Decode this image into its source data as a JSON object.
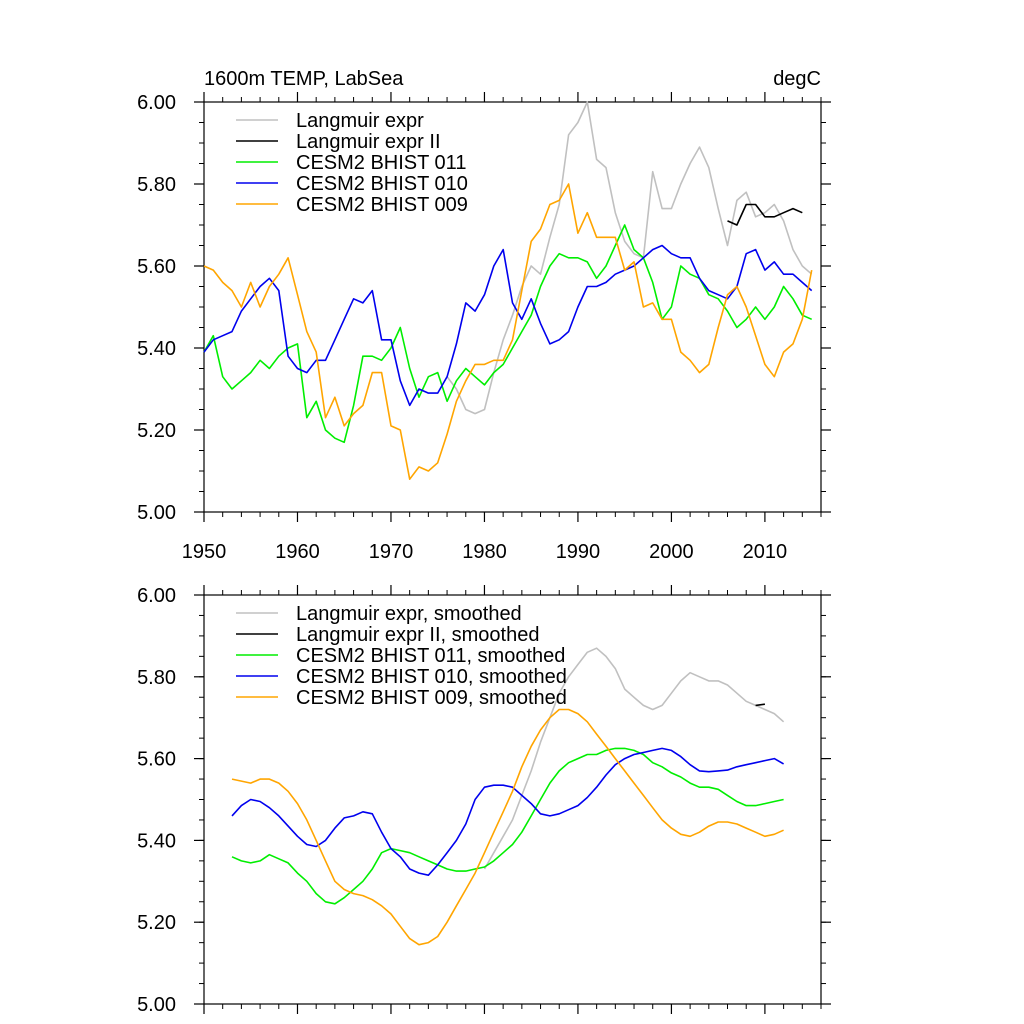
{
  "header": {
    "left": "1600m TEMP, LabSea",
    "right": "degC"
  },
  "chart_data": [
    {
      "type": "line",
      "title": "1600m TEMP, LabSea",
      "units": "degC",
      "xlim": [
        1950,
        2016
      ],
      "ylim": [
        5.0,
        6.0
      ],
      "x_ticks": [
        1950,
        1960,
        1970,
        1980,
        1990,
        2000,
        2010
      ],
      "y_ticks": [
        5.0,
        5.2,
        5.4,
        5.6,
        5.8,
        6.0
      ],
      "y_tick_labels": [
        "5.00",
        "5.20",
        "5.40",
        "5.60",
        "5.80",
        "6.00"
      ],
      "grid": false,
      "legend_position": "top-left",
      "series": [
        {
          "name": "Langmuir expr",
          "color": "#c0c0c0",
          "x": [
            1976,
            1977,
            1978,
            1979,
            1980,
            1981,
            1982,
            1983,
            1984,
            1985,
            1986,
            1987,
            1988,
            1989,
            1990,
            1991,
            1992,
            1993,
            1994,
            1995,
            1996,
            1997,
            1998,
            1999,
            2000,
            2001,
            2002,
            2003,
            2004,
            2005,
            2006,
            2007,
            2008,
            2009,
            2010,
            2011,
            2012,
            2013,
            2014,
            2015
          ],
          "y": [
            5.33,
            5.3,
            5.25,
            5.24,
            5.25,
            5.34,
            5.42,
            5.48,
            5.55,
            5.6,
            5.58,
            5.67,
            5.75,
            5.92,
            5.95,
            6.0,
            5.86,
            5.84,
            5.73,
            5.66,
            5.63,
            5.62,
            5.83,
            5.74,
            5.74,
            5.8,
            5.85,
            5.89,
            5.84,
            5.74,
            5.65,
            5.76,
            5.78,
            5.72,
            5.73,
            5.75,
            5.71,
            5.64,
            5.6,
            5.58
          ]
        },
        {
          "name": "Langmuir expr II",
          "color": "#000000",
          "x": [
            2006,
            2007,
            2008,
            2009,
            2010,
            2011,
            2012,
            2013,
            2014
          ],
          "y": [
            5.71,
            5.7,
            5.75,
            5.75,
            5.72,
            5.72,
            5.73,
            5.74,
            5.73
          ]
        },
        {
          "name": "CESM2 BHIST 011",
          "color": "#00ee00",
          "x": [
            1950,
            1951,
            1952,
            1953,
            1954,
            1955,
            1956,
            1957,
            1958,
            1959,
            1960,
            1961,
            1962,
            1963,
            1964,
            1965,
            1966,
            1967,
            1968,
            1969,
            1970,
            1971,
            1972,
            1973,
            1974,
            1975,
            1976,
            1977,
            1978,
            1979,
            1980,
            1981,
            1982,
            1983,
            1984,
            1985,
            1986,
            1987,
            1988,
            1989,
            1990,
            1991,
            1992,
            1993,
            1994,
            1995,
            1996,
            1997,
            1998,
            1999,
            2000,
            2001,
            2002,
            2003,
            2004,
            2005,
            2006,
            2007,
            2008,
            2009,
            2010,
            2011,
            2012,
            2013,
            2014,
            2015
          ],
          "y": [
            5.39,
            5.43,
            5.33,
            5.3,
            5.32,
            5.34,
            5.37,
            5.35,
            5.38,
            5.4,
            5.41,
            5.23,
            5.27,
            5.2,
            5.18,
            5.17,
            5.26,
            5.38,
            5.38,
            5.37,
            5.4,
            5.45,
            5.35,
            5.28,
            5.33,
            5.34,
            5.27,
            5.32,
            5.35,
            5.33,
            5.31,
            5.34,
            5.36,
            5.4,
            5.44,
            5.48,
            5.55,
            5.6,
            5.63,
            5.62,
            5.62,
            5.61,
            5.57,
            5.6,
            5.65,
            5.7,
            5.64,
            5.62,
            5.56,
            5.47,
            5.5,
            5.6,
            5.58,
            5.57,
            5.53,
            5.52,
            5.49,
            5.45,
            5.47,
            5.5,
            5.47,
            5.5,
            5.55,
            5.52,
            5.48,
            5.47
          ]
        },
        {
          "name": "CESM2 BHIST 010",
          "color": "#0000ee",
          "x": [
            1950,
            1951,
            1952,
            1953,
            1954,
            1955,
            1956,
            1957,
            1958,
            1959,
            1960,
            1961,
            1962,
            1963,
            1964,
            1965,
            1966,
            1967,
            1968,
            1969,
            1970,
            1971,
            1972,
            1973,
            1974,
            1975,
            1976,
            1977,
            1978,
            1979,
            1980,
            1981,
            1982,
            1983,
            1984,
            1985,
            1986,
            1987,
            1988,
            1989,
            1990,
            1991,
            1992,
            1993,
            1994,
            1995,
            1996,
            1997,
            1998,
            1999,
            2000,
            2001,
            2002,
            2003,
            2004,
            2005,
            2006,
            2007,
            2008,
            2009,
            2010,
            2011,
            2012,
            2013,
            2014,
            2015
          ],
          "y": [
            5.39,
            5.42,
            5.43,
            5.44,
            5.49,
            5.52,
            5.55,
            5.57,
            5.54,
            5.38,
            5.35,
            5.34,
            5.37,
            5.37,
            5.42,
            5.47,
            5.52,
            5.51,
            5.54,
            5.42,
            5.42,
            5.32,
            5.26,
            5.3,
            5.29,
            5.29,
            5.33,
            5.41,
            5.51,
            5.49,
            5.53,
            5.6,
            5.64,
            5.51,
            5.47,
            5.52,
            5.46,
            5.41,
            5.42,
            5.44,
            5.5,
            5.55,
            5.55,
            5.56,
            5.58,
            5.59,
            5.6,
            5.62,
            5.64,
            5.65,
            5.63,
            5.62,
            5.62,
            5.57,
            5.54,
            5.53,
            5.52,
            5.55,
            5.63,
            5.64,
            5.59,
            5.61,
            5.58,
            5.58,
            5.56,
            5.54
          ]
        },
        {
          "name": "CESM2 BHIST 009",
          "color": "#ffa500",
          "x": [
            1950,
            1951,
            1952,
            1953,
            1954,
            1955,
            1956,
            1957,
            1958,
            1959,
            1960,
            1961,
            1962,
            1963,
            1964,
            1965,
            1966,
            1967,
            1968,
            1969,
            1970,
            1971,
            1972,
            1973,
            1974,
            1975,
            1976,
            1977,
            1978,
            1979,
            1980,
            1981,
            1982,
            1983,
            1984,
            1985,
            1986,
            1987,
            1988,
            1989,
            1990,
            1991,
            1992,
            1993,
            1994,
            1995,
            1996,
            1997,
            1998,
            1999,
            2000,
            2001,
            2002,
            2003,
            2004,
            2005,
            2006,
            2007,
            2008,
            2009,
            2010,
            2011,
            2012,
            2013,
            2014,
            2015
          ],
          "y": [
            5.6,
            5.59,
            5.56,
            5.54,
            5.5,
            5.56,
            5.5,
            5.55,
            5.58,
            5.62,
            5.53,
            5.44,
            5.39,
            5.23,
            5.28,
            5.21,
            5.24,
            5.26,
            5.34,
            5.34,
            5.21,
            5.2,
            5.08,
            5.11,
            5.1,
            5.12,
            5.19,
            5.27,
            5.32,
            5.36,
            5.36,
            5.37,
            5.37,
            5.42,
            5.54,
            5.66,
            5.69,
            5.75,
            5.76,
            5.8,
            5.68,
            5.73,
            5.67,
            5.67,
            5.67,
            5.59,
            5.61,
            5.5,
            5.51,
            5.47,
            5.47,
            5.39,
            5.37,
            5.34,
            5.36,
            5.45,
            5.53,
            5.55,
            5.5,
            5.43,
            5.36,
            5.33,
            5.39,
            5.41,
            5.47,
            5.59
          ]
        }
      ]
    },
    {
      "type": "line",
      "xlim": [
        1950,
        2016
      ],
      "ylim": [
        5.0,
        6.0
      ],
      "x_ticks": [
        1950,
        1960,
        1970,
        1980,
        1990,
        2000,
        2010
      ],
      "y_ticks": [
        5.0,
        5.2,
        5.4,
        5.6,
        5.8,
        6.0
      ],
      "y_tick_labels": [
        "5.00",
        "5.20",
        "5.40",
        "5.60",
        "5.80",
        "6.00"
      ],
      "grid": false,
      "legend_position": "top-left",
      "series": [
        {
          "name": "Langmuir expr, smoothed",
          "color": "#c0c0c0",
          "x": [
            1980,
            1981,
            1982,
            1983,
            1984,
            1985,
            1986,
            1987,
            1988,
            1989,
            1990,
            1991,
            1992,
            1993,
            1994,
            1995,
            1996,
            1997,
            1998,
            1999,
            2000,
            2001,
            2002,
            2003,
            2004,
            2005,
            2006,
            2007,
            2008,
            2009,
            2010,
            2011,
            2012
          ],
          "y": [
            5.33,
            5.37,
            5.41,
            5.45,
            5.51,
            5.57,
            5.64,
            5.7,
            5.76,
            5.8,
            5.83,
            5.86,
            5.87,
            5.85,
            5.82,
            5.77,
            5.75,
            5.73,
            5.72,
            5.73,
            5.76,
            5.79,
            5.81,
            5.8,
            5.79,
            5.79,
            5.78,
            5.76,
            5.74,
            5.73,
            5.72,
            5.71,
            5.69
          ]
        },
        {
          "name": "Langmuir expr II, smoothed",
          "color": "#000000",
          "x": [
            2009,
            2010
          ],
          "y": [
            5.73,
            5.733
          ]
        },
        {
          "name": "CESM2 BHIST 011, smoothed",
          "color": "#00ee00",
          "x": [
            1953,
            1954,
            1955,
            1956,
            1957,
            1958,
            1959,
            1960,
            1961,
            1962,
            1963,
            1964,
            1965,
            1966,
            1967,
            1968,
            1969,
            1970,
            1971,
            1972,
            1973,
            1974,
            1975,
            1976,
            1977,
            1978,
            1979,
            1980,
            1981,
            1982,
            1983,
            1984,
            1985,
            1986,
            1987,
            1988,
            1989,
            1990,
            1991,
            1992,
            1993,
            1994,
            1995,
            1996,
            1997,
            1998,
            1999,
            2000,
            2001,
            2002,
            2003,
            2004,
            2005,
            2006,
            2007,
            2008,
            2009,
            2010,
            2011,
            2012
          ],
          "y": [
            5.36,
            5.35,
            5.345,
            5.35,
            5.365,
            5.355,
            5.345,
            5.32,
            5.3,
            5.27,
            5.25,
            5.245,
            5.26,
            5.28,
            5.3,
            5.33,
            5.37,
            5.38,
            5.375,
            5.37,
            5.36,
            5.35,
            5.34,
            5.33,
            5.325,
            5.325,
            5.33,
            5.335,
            5.35,
            5.37,
            5.39,
            5.42,
            5.46,
            5.5,
            5.54,
            5.57,
            5.59,
            5.6,
            5.61,
            5.61,
            5.62,
            5.625,
            5.625,
            5.62,
            5.61,
            5.59,
            5.58,
            5.565,
            5.555,
            5.54,
            5.53,
            5.53,
            5.525,
            5.51,
            5.495,
            5.485,
            5.485,
            5.49,
            5.495,
            5.5
          ]
        },
        {
          "name": "CESM2 BHIST 010, smoothed",
          "color": "#0000ee",
          "x": [
            1953,
            1954,
            1955,
            1956,
            1957,
            1958,
            1959,
            1960,
            1961,
            1962,
            1963,
            1964,
            1965,
            1966,
            1967,
            1968,
            1969,
            1970,
            1971,
            1972,
            1973,
            1974,
            1975,
            1976,
            1977,
            1978,
            1979,
            1980,
            1981,
            1982,
            1983,
            1984,
            1985,
            1986,
            1987,
            1988,
            1989,
            1990,
            1991,
            1992,
            1993,
            1994,
            1995,
            1996,
            1997,
            1998,
            1999,
            2000,
            2001,
            2002,
            2003,
            2004,
            2005,
            2006,
            2007,
            2008,
            2009,
            2010,
            2011,
            2012
          ],
          "y": [
            5.46,
            5.485,
            5.5,
            5.495,
            5.48,
            5.46,
            5.435,
            5.41,
            5.39,
            5.385,
            5.4,
            5.43,
            5.455,
            5.46,
            5.47,
            5.465,
            5.42,
            5.38,
            5.36,
            5.33,
            5.32,
            5.315,
            5.34,
            5.37,
            5.4,
            5.44,
            5.5,
            5.53,
            5.535,
            5.535,
            5.53,
            5.51,
            5.49,
            5.465,
            5.46,
            5.465,
            5.475,
            5.485,
            5.505,
            5.53,
            5.56,
            5.585,
            5.6,
            5.61,
            5.615,
            5.62,
            5.625,
            5.62,
            5.605,
            5.585,
            5.57,
            5.568,
            5.57,
            5.572,
            5.58,
            5.585,
            5.59,
            5.595,
            5.6,
            5.587
          ]
        },
        {
          "name": "CESM2 BHIST 009, smoothed",
          "color": "#ffa500",
          "x": [
            1953,
            1954,
            1955,
            1956,
            1957,
            1958,
            1959,
            1960,
            1961,
            1962,
            1963,
            1964,
            1965,
            1966,
            1967,
            1968,
            1969,
            1970,
            1971,
            1972,
            1973,
            1974,
            1975,
            1976,
            1977,
            1978,
            1979,
            1980,
            1981,
            1982,
            1983,
            1984,
            1985,
            1986,
            1987,
            1988,
            1989,
            1990,
            1991,
            1992,
            1993,
            1994,
            1995,
            1996,
            1997,
            1998,
            1999,
            2000,
            2001,
            2002,
            2003,
            2004,
            2005,
            2006,
            2007,
            2008,
            2009,
            2010,
            2011,
            2012
          ],
          "y": [
            5.55,
            5.545,
            5.54,
            5.55,
            5.55,
            5.54,
            5.52,
            5.49,
            5.45,
            5.4,
            5.35,
            5.3,
            5.28,
            5.27,
            5.265,
            5.255,
            5.24,
            5.22,
            5.19,
            5.16,
            5.145,
            5.15,
            5.165,
            5.2,
            5.24,
            5.28,
            5.32,
            5.37,
            5.42,
            5.47,
            5.52,
            5.58,
            5.63,
            5.67,
            5.7,
            5.72,
            5.72,
            5.71,
            5.69,
            5.66,
            5.63,
            5.6,
            5.57,
            5.54,
            5.51,
            5.48,
            5.45,
            5.43,
            5.415,
            5.41,
            5.42,
            5.435,
            5.445,
            5.445,
            5.44,
            5.43,
            5.42,
            5.41,
            5.415,
            5.425
          ]
        }
      ]
    }
  ]
}
